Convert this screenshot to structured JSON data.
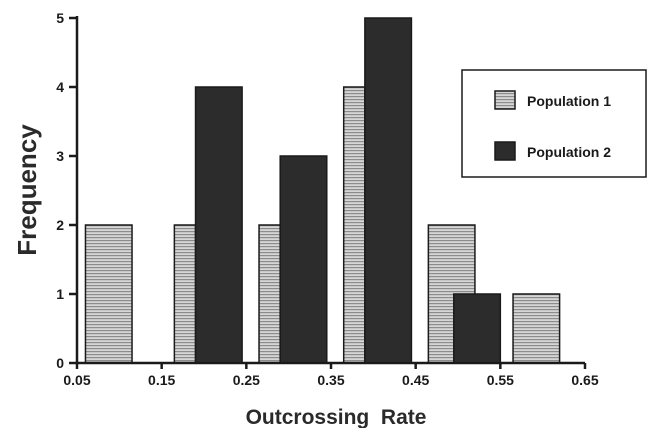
{
  "chart_data": {
    "type": "bar",
    "title": "",
    "xlabel": "Outcrossing  Rate",
    "ylabel": "Frequency",
    "xlim": [
      0.05,
      0.65
    ],
    "ylim": [
      0,
      5
    ],
    "xticks": [
      "0.05",
      "0.15",
      "0.25",
      "0.35",
      "0.45",
      "0.55",
      "0.65"
    ],
    "yticks": [
      "0",
      "1",
      "2",
      "3",
      "4",
      "5"
    ],
    "grid": false,
    "legend_position": "right",
    "series": [
      {
        "name": "Population 1",
        "pattern": "horizontal-stripes",
        "color": "#bdbdbd",
        "bins": [
          {
            "x0": 0.06,
            "x1": 0.115,
            "value": 2
          },
          {
            "x0": 0.165,
            "x1": 0.19,
            "value": 2
          },
          {
            "x0": 0.265,
            "x1": 0.29,
            "value": 2
          },
          {
            "x0": 0.365,
            "x1": 0.39,
            "value": 4
          },
          {
            "x0": 0.465,
            "x1": 0.52,
            "value": 2
          },
          {
            "x0": 0.565,
            "x1": 0.62,
            "value": 1
          }
        ]
      },
      {
        "name": "Population 2",
        "pattern": "solid",
        "color": "#2c2c2c",
        "bins": [
          {
            "x0": 0.19,
            "x1": 0.245,
            "value": 4
          },
          {
            "x0": 0.29,
            "x1": 0.345,
            "value": 3
          },
          {
            "x0": 0.39,
            "x1": 0.445,
            "value": 5
          },
          {
            "x0": 0.495,
            "x1": 0.55,
            "value": 1
          }
        ]
      }
    ]
  }
}
